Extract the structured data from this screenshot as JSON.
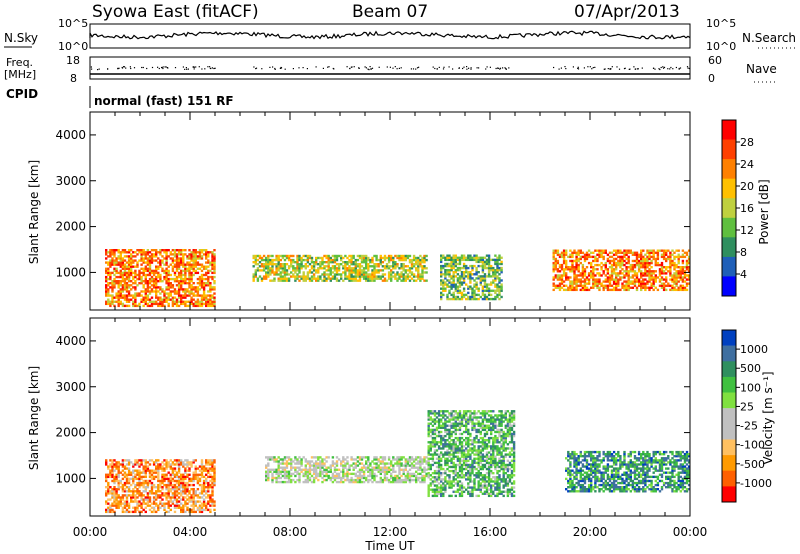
{
  "header": {
    "station": "Syowa East (fitACF)",
    "beam": "Beam 07",
    "date": "07/Apr/2013"
  },
  "top_panels": {
    "nsky_label": "N.Sky",
    "nsky_ticks": [
      "10^5",
      "10^0"
    ],
    "nsearch_label": "N.Search",
    "nsearch_ticks": [
      "10^5",
      "10^0"
    ],
    "freq_label": "Freq.",
    "freq_unit": "[MHz]",
    "freq_ticks": [
      "18",
      "8"
    ],
    "nave_label": "Nave",
    "nave_ticks": [
      "60",
      "0"
    ],
    "cpid_label": "CPID",
    "cpid_text": "normal (fast) 151 RF"
  },
  "colors": {
    "power": [
      "#0000ff",
      "#1f5fb8",
      "#2f8f5f",
      "#5fbf3f",
      "#bfd03f",
      "#ffc000",
      "#ff8000",
      "#ff4000",
      "#ff0000"
    ],
    "velocity": [
      "#ff0000",
      "#ff6000",
      "#ff9a00",
      "#ffc060",
      "#c0c0c0",
      "#c0c0c0",
      "#80e040",
      "#40c040",
      "#2f8f5f",
      "#3f6fa0",
      "#0040c0"
    ]
  },
  "chart_data": [
    {
      "type": "heatmap",
      "name": "power",
      "xlabel": "",
      "ylabel": "Slant Range [km]",
      "ylim": [
        180,
        4500
      ],
      "yticks": [
        "1000",
        "2000",
        "3000",
        "4000"
      ],
      "xlim": [
        0,
        24
      ],
      "colorbar_label": "Power [dB]",
      "colorbar_ticks": [
        "4",
        "8",
        "12",
        "16",
        "20",
        "24",
        "28"
      ],
      "regions": [
        {
          "t0": 0.6,
          "t1": 5.0,
          "r0": 250,
          "r1": 1500,
          "level": 6
        },
        {
          "t0": 6.5,
          "t1": 13.5,
          "r0": 800,
          "r1": 1400,
          "level": 4
        },
        {
          "t0": 14.0,
          "t1": 16.5,
          "r0": 400,
          "r1": 1400,
          "level": 3
        },
        {
          "t0": 18.5,
          "t1": 24.0,
          "r0": 600,
          "r1": 1500,
          "level": 6
        }
      ]
    },
    {
      "type": "heatmap",
      "name": "velocity",
      "xlabel": "Time UT",
      "ylabel": "Slant Range [km]",
      "ylim": [
        180,
        4500
      ],
      "yticks": [
        "1000",
        "2000",
        "3000",
        "4000"
      ],
      "xlim": [
        0,
        24
      ],
      "xticks": [
        "00:00",
        "04:00",
        "08:00",
        "12:00",
        "16:00",
        "20:00",
        "00:00"
      ],
      "colorbar_label": "Velocity [m s⁻¹]",
      "colorbar_ticks": [
        "1000",
        "500",
        "100",
        "25",
        "-25",
        "-100",
        "-500",
        "-1000"
      ],
      "regions": [
        {
          "t0": 0.6,
          "t1": 5.0,
          "r0": 250,
          "r1": 1400,
          "level": 2
        },
        {
          "t0": 7.0,
          "t1": 13.5,
          "r0": 900,
          "r1": 1500,
          "level": 5
        },
        {
          "t0": 13.5,
          "t1": 17.0,
          "r0": 600,
          "r1": 2500,
          "level": 7
        },
        {
          "t0": 19.0,
          "t1": 24.0,
          "r0": 700,
          "r1": 1600,
          "level": 8
        }
      ]
    }
  ]
}
